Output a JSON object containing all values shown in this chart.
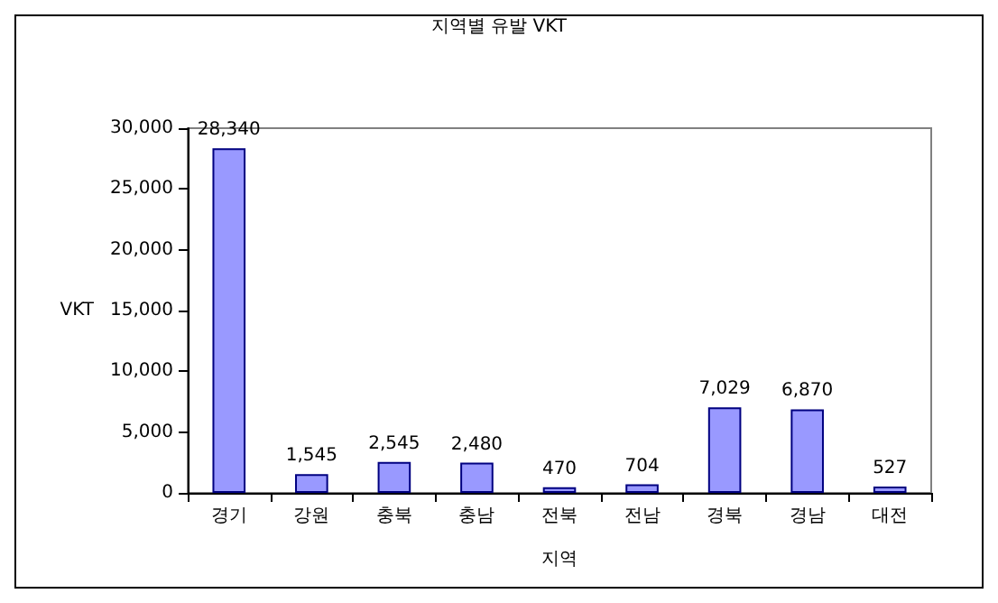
{
  "chart_data": {
    "type": "bar",
    "title": "지역별 유발 VKT",
    "xlabel": "지역",
    "ylabel": "VKT",
    "categories": [
      "경기",
      "강원",
      "충북",
      "충남",
      "전북",
      "전남",
      "경북",
      "경남",
      "대전"
    ],
    "values": [
      28340,
      1545,
      2545,
      2480,
      470,
      704,
      7029,
      6870,
      527
    ],
    "value_labels": [
      "28,340",
      "1,545",
      "2,545",
      "2,480",
      "470",
      "704",
      "7,029",
      "6,870",
      "527"
    ],
    "color": "#9999ff",
    "ylim": [
      0,
      30000
    ],
    "yticks": [
      0,
      {
        "value": 5000,
        "label": "5,000"
      },
      {
        "value": 10000,
        "label": "10,000"
      },
      {
        "value": 15000,
        "label": "15,000"
      },
      {
        "value": 20000,
        "label": "20,000"
      },
      {
        "value": 25000,
        "label": "25,000"
      },
      {
        "value": 30000,
        "label": "30,000"
      }
    ],
    "grid": false
  }
}
